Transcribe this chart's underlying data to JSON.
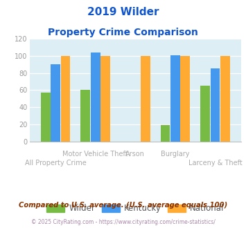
{
  "title_line1": "2019 Wilder",
  "title_line2": "Property Crime Comparison",
  "categories_top": [
    "",
    "Motor Vehicle Theft",
    "Arson",
    "Burglary",
    ""
  ],
  "categories_bot": [
    "All Property Crime",
    "",
    "",
    "",
    "Larceny & Theft"
  ],
  "wilder": [
    57,
    60,
    0,
    19,
    65
  ],
  "kentucky": [
    90,
    104,
    0,
    101,
    85
  ],
  "national": [
    100,
    100,
    100,
    100,
    100
  ],
  "wilder_color": "#77bb44",
  "kentucky_color": "#4499ee",
  "national_color": "#ffaa33",
  "bg_color": "#ddeef5",
  "ylim": [
    0,
    120
  ],
  "yticks": [
    0,
    20,
    40,
    60,
    80,
    100,
    120
  ],
  "footnote1": "Compared to U.S. average. (U.S. average equals 100)",
  "footnote2": "© 2025 CityRating.com - https://www.cityrating.com/crime-statistics/",
  "title_color": "#1155cc",
  "label_color": "#aaaaaa",
  "footnote1_color": "#883300",
  "footnote2_color": "#aa88aa",
  "legend_color": "#555555"
}
